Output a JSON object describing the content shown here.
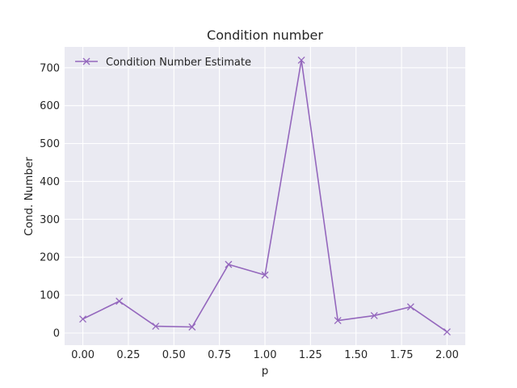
{
  "chart_data": {
    "type": "line",
    "title": "Condition number",
    "xlabel": "p",
    "ylabel": "Cond. Number",
    "x": [
      0.0,
      0.2,
      0.4,
      0.6,
      0.8,
      1.0,
      1.2,
      1.4,
      1.6,
      1.8,
      2.0
    ],
    "series": [
      {
        "name": "Condition Number Estimate",
        "values": [
          37,
          84,
          18,
          16,
          181,
          153,
          720,
          33,
          46,
          69,
          3
        ],
        "color": "#9467bd",
        "marker": "x"
      }
    ],
    "xlim": [
      -0.1,
      2.1
    ],
    "ylim": [
      -32,
      755
    ],
    "xticks": [
      0.0,
      0.25,
      0.5,
      0.75,
      1.0,
      1.25,
      1.5,
      1.75,
      2.0
    ],
    "xtick_labels": [
      "0.00",
      "0.25",
      "0.50",
      "0.75",
      "1.00",
      "1.25",
      "1.50",
      "1.75",
      "2.00"
    ],
    "yticks": [
      0,
      100,
      200,
      300,
      400,
      500,
      600,
      700
    ],
    "ytick_labels": [
      "0",
      "100",
      "200",
      "300",
      "400",
      "500",
      "600",
      "700"
    ],
    "grid": true,
    "legend_position": "top-left",
    "background": "#eaeaf2"
  }
}
